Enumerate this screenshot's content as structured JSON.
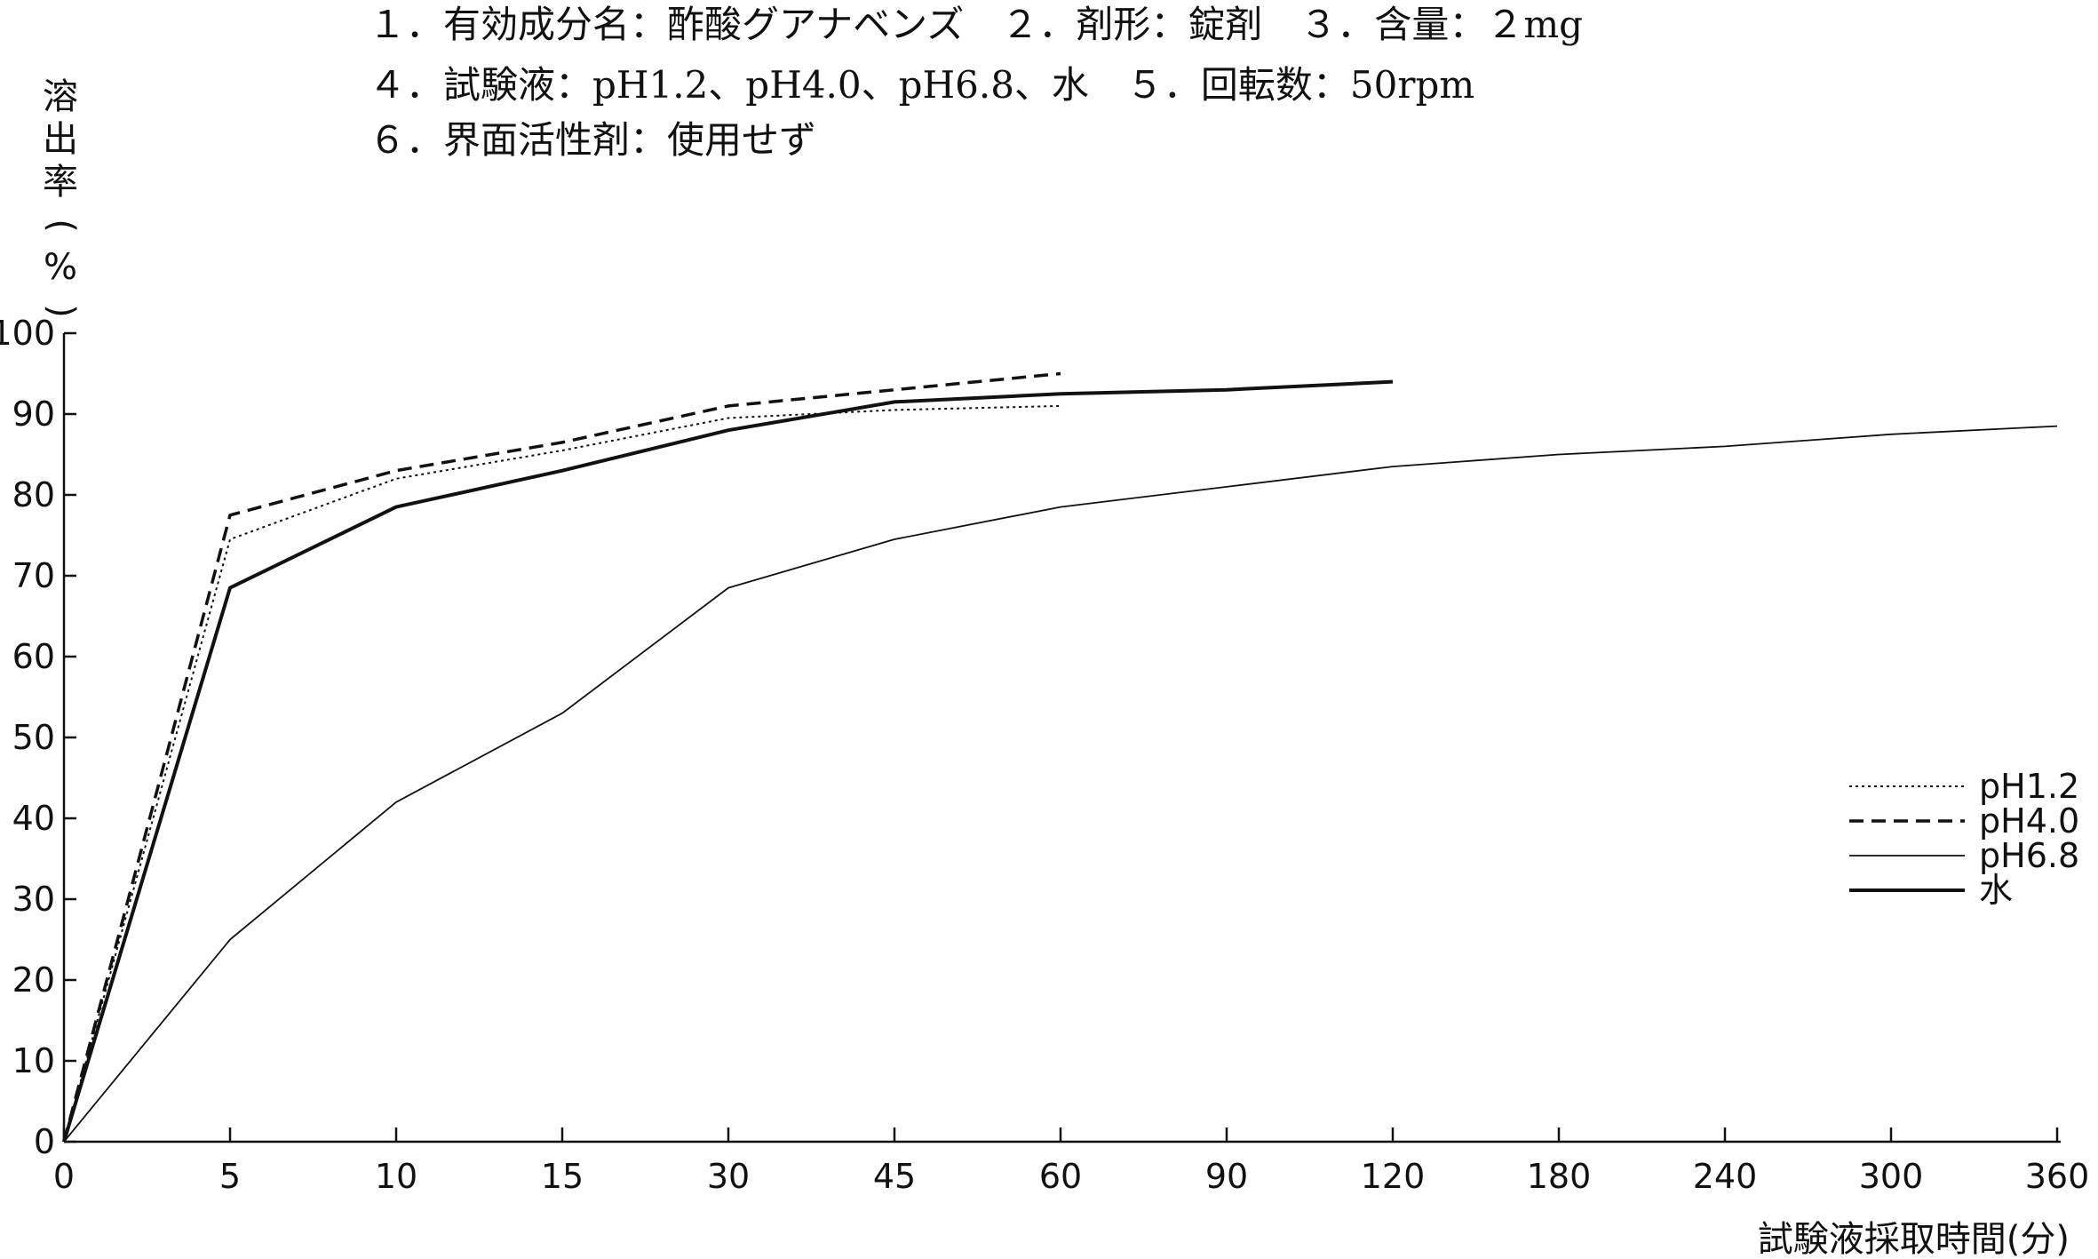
{
  "chart_data": {
    "type": "line",
    "header_lines": [
      "１．有効成分名：酢酸グアナベンズ　２．剤形：錠剤　３．含量：２mg",
      "４．試験液：pH1.2、pH4.0、pH6.8、水　５．回転数：50rpm",
      "６．界面活性剤：使用せず"
    ],
    "ylabel": "溶出率(%)",
    "xlabel": "試験液採取時間(分)",
    "categories": [
      "0",
      "5",
      "10",
      "15",
      "30",
      "45",
      "60",
      "90",
      "120",
      "180",
      "240",
      "300",
      "360"
    ],
    "ylim": [
      0,
      100
    ],
    "yticks": [
      "0",
      "10",
      "20",
      "30",
      "40",
      "50",
      "60",
      "70",
      "80",
      "90",
      "100"
    ],
    "legend_position": "right",
    "series": [
      {
        "name": "pH1.2",
        "style": "dotted",
        "color": "#111111",
        "x": [
          0,
          5,
          10,
          15,
          30,
          45,
          60
        ],
        "y": [
          0,
          74.5,
          82,
          85.5,
          89.5,
          90.5,
          91
        ]
      },
      {
        "name": "pH4.0",
        "style": "dashed",
        "color": "#111111",
        "x": [
          0,
          5,
          10,
          15,
          30,
          45,
          60
        ],
        "y": [
          0,
          77.5,
          83,
          86.5,
          91,
          93,
          95
        ]
      },
      {
        "name": "pH6.8",
        "style": "thin",
        "color": "#111111",
        "x": [
          0,
          5,
          10,
          15,
          30,
          45,
          60,
          90,
          120,
          180,
          240,
          300,
          360
        ],
        "y": [
          0,
          25,
          42,
          53,
          68.5,
          74.5,
          78.5,
          81,
          83.5,
          85,
          86,
          87.5,
          88.5
        ]
      },
      {
        "name": "水",
        "style": "thick",
        "color": "#111111",
        "x": [
          0,
          5,
          10,
          15,
          30,
          45,
          60,
          90,
          120
        ],
        "y": [
          0,
          68.5,
          78.5,
          83,
          88,
          91.5,
          92.5,
          93,
          94
        ]
      }
    ]
  }
}
